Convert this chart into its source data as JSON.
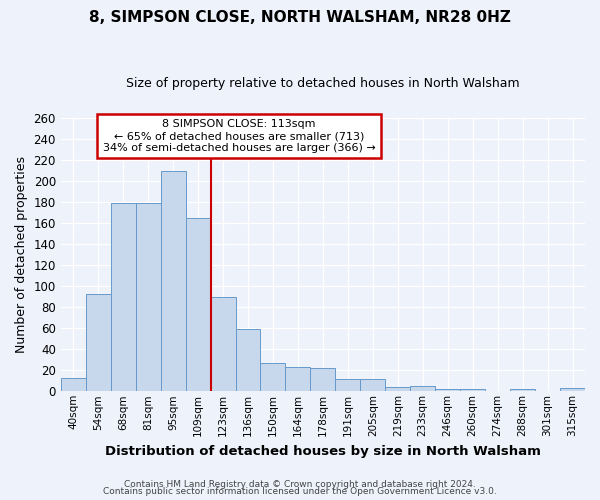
{
  "title": "8, SIMPSON CLOSE, NORTH WALSHAM, NR28 0HZ",
  "subtitle": "Size of property relative to detached houses in North Walsham",
  "xlabel": "Distribution of detached houses by size in North Walsham",
  "ylabel": "Number of detached properties",
  "bin_labels": [
    "40sqm",
    "54sqm",
    "68sqm",
    "81sqm",
    "95sqm",
    "109sqm",
    "123sqm",
    "136sqm",
    "150sqm",
    "164sqm",
    "178sqm",
    "191sqm",
    "205sqm",
    "219sqm",
    "233sqm",
    "246sqm",
    "260sqm",
    "274sqm",
    "288sqm",
    "301sqm",
    "315sqm"
  ],
  "bar_heights": [
    13,
    93,
    179,
    179,
    210,
    165,
    90,
    59,
    27,
    23,
    22,
    12,
    12,
    4,
    5,
    2,
    2,
    0,
    2,
    0,
    3
  ],
  "bar_color": "#c8d8ec",
  "bar_edge_color": "#6699cc",
  "vline_x": 5.5,
  "vline_color": "#cc0000",
  "ylim": [
    0,
    260
  ],
  "yticks": [
    0,
    20,
    40,
    60,
    80,
    100,
    120,
    140,
    160,
    180,
    200,
    220,
    240,
    260
  ],
  "annotation_title": "8 SIMPSON CLOSE: 113sqm",
  "annotation_line1": "← 65% of detached houses are smaller (713)",
  "annotation_line2": "34% of semi-detached houses are larger (366) →",
  "annotation_box_color": "#cc0000",
  "footer_line1": "Contains HM Land Registry data © Crown copyright and database right 2024.",
  "footer_line2": "Contains public sector information licensed under the Open Government Licence v3.0.",
  "background_color": "#eef2fb",
  "grid_color": "#ffffff"
}
